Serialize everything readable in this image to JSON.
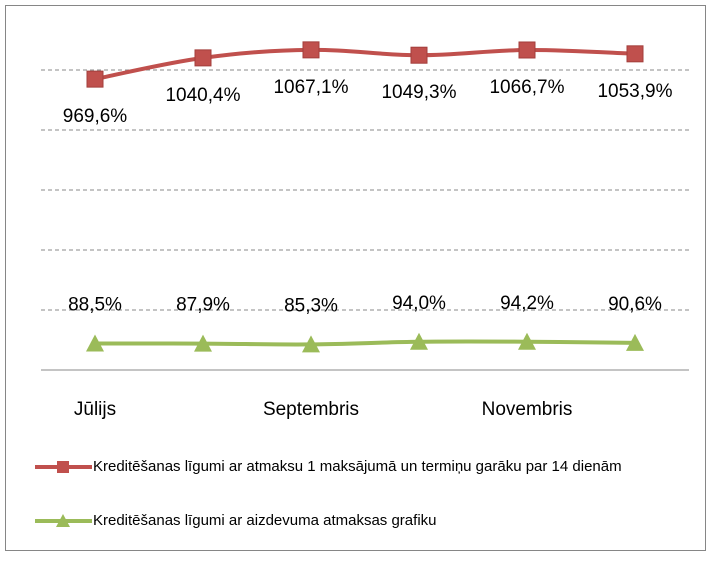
{
  "chart_data": {
    "type": "line",
    "categories": [
      "Jūlijs",
      null,
      "Septembris",
      null,
      "Novembris",
      null
    ],
    "series": [
      {
        "name": "Kreditēšanas līgumi ar atmaksu 1 maksājumā un termiņu garāku par 14 dienām",
        "color": "#c0504d",
        "marker": "square",
        "label_position": "below",
        "values": [
          969.6,
          1040.4,
          1067.1,
          1049.3,
          1066.7,
          1053.9
        ],
        "value_labels": [
          "969,6%",
          "1040,4%",
          "1067,1%",
          "1049,3%",
          "1066,7%",
          "1053,9%"
        ]
      },
      {
        "name": "Kreditēšanas līgumi ar aizdevuma atmaksas grafiku",
        "color": "#9bbb59",
        "marker": "triangle",
        "label_position": "above",
        "values": [
          88.5,
          87.9,
          85.3,
          94.0,
          94.2,
          90.6
        ],
        "value_labels": [
          "88,5%",
          "87,9%",
          "85,3%",
          "94,0%",
          "94,2%",
          "90,6%"
        ]
      }
    ],
    "ylim": [
      0,
      1200
    ],
    "yticks": [
      200,
      400,
      600,
      800,
      1000
    ],
    "grid": true,
    "legend": "bottom"
  }
}
